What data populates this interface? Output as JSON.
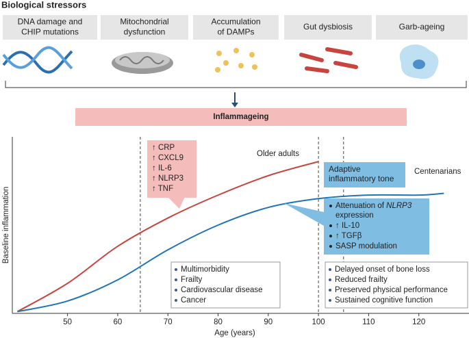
{
  "header": {
    "title": "Biological stressors"
  },
  "stressors": [
    {
      "lines": [
        "DNA damage and",
        "CHIP mutations"
      ]
    },
    {
      "lines": [
        "Mitochondrial",
        "dysfunction"
      ]
    },
    {
      "lines": [
        "Accumulation",
        "of DAMPs"
      ]
    },
    {
      "lines": [
        "Gut dysbiosis"
      ]
    },
    {
      "lines": [
        "Garb-ageing"
      ]
    }
  ],
  "banner": "Inflammageing",
  "chart_data": {
    "type": "line",
    "xlabel": "Age (years)",
    "ylabel": "Baseline inflammation",
    "xlim": [
      39,
      130
    ],
    "ylim": [
      0,
      100
    ],
    "xticks": [
      50,
      60,
      70,
      80,
      90,
      100,
      110,
      120
    ],
    "reference_lines": [
      64.5,
      100,
      105
    ],
    "series": [
      {
        "name": "Older adults",
        "color": "#c8453e",
        "x": [
          40,
          50,
          60,
          70,
          80,
          90,
          100
        ],
        "values": [
          1,
          17,
          38,
          54,
          67,
          78,
          86
        ]
      },
      {
        "name": "Centenarians",
        "color": "#1f73b7",
        "x": [
          40,
          50,
          60,
          70,
          80,
          90,
          100,
          110,
          120,
          125
        ],
        "values": [
          1,
          7,
          19,
          36,
          50,
          60,
          65,
          67,
          67,
          68
        ]
      }
    ]
  },
  "callouts": {
    "older_markers": [
      "↑ CRP",
      "↑ CXCL9",
      "↑ IL-6",
      "↑ NLRP3",
      "↑ TNF"
    ],
    "adaptive_title": [
      "Adaptive",
      "inflammatory tone"
    ],
    "adaptive_items": [
      {
        "parts": [
          "Attenuation of ",
          "NLRP3",
          " expression"
        ]
      },
      {
        "parts": [
          "↑ IL-10"
        ]
      },
      {
        "parts": [
          "↑ TGFβ"
        ]
      },
      {
        "parts": [
          "SASP modulation"
        ]
      }
    ],
    "older_outcomes": [
      "Multimorbidity",
      "Frailty",
      "Cardiovascular disease",
      "Cancer"
    ],
    "centenarian_outcomes": [
      "Delayed onset of bone loss",
      "Reduced frailty",
      "Preserved physical performance",
      "Sustained cognitive function"
    ]
  }
}
